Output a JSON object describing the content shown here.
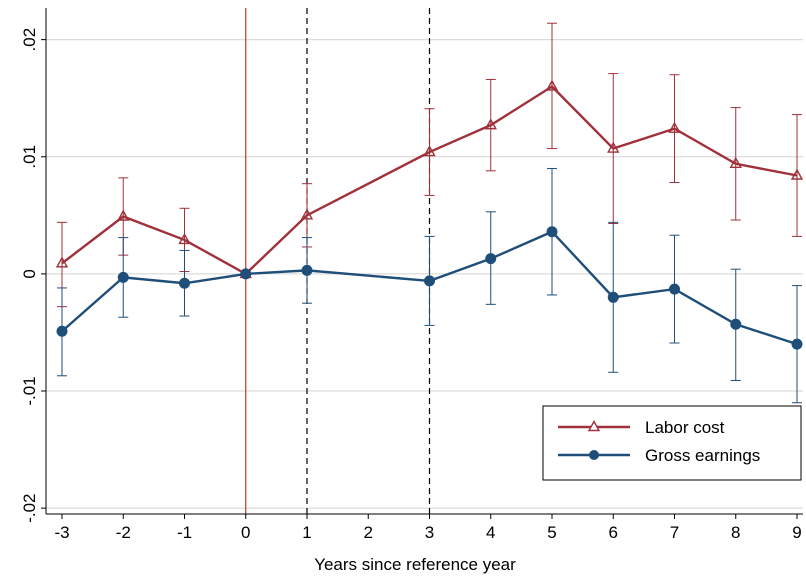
{
  "chart_data": {
    "type": "line",
    "xlabel": "Years since reference year",
    "ylabel": "",
    "x": [
      -3,
      -2,
      -1,
      0,
      1,
      3,
      4,
      5,
      6,
      7,
      8,
      9
    ],
    "xticks": [
      -3,
      -2,
      -1,
      0,
      1,
      2,
      3,
      4,
      5,
      6,
      7,
      8,
      9
    ],
    "yticks": [
      -0.02,
      -0.01,
      0,
      0.01,
      0.02
    ],
    "ytick_labels": [
      "-.02",
      "-.01",
      "0",
      ".01",
      ".02"
    ],
    "xlim": [
      -3,
      9
    ],
    "ylim": [
      -0.0205,
      0.0227
    ],
    "grid": true,
    "reference_lines": [
      {
        "x": 0,
        "style": "solid",
        "color": "#c0392b"
      },
      {
        "x": 1,
        "style": "dashed",
        "color": "#000000"
      },
      {
        "x": 3,
        "style": "dashed",
        "color": "#000000"
      }
    ],
    "legend_position": "bottom-right",
    "series": [
      {
        "name": "Labor cost",
        "marker": "triangle-open",
        "color": "#a0303a",
        "values": [
          0.0009,
          0.0049,
          0.0029,
          0.0,
          0.005,
          0.0104,
          0.0127,
          0.016,
          0.0107,
          0.0124,
          0.0094,
          0.0084
        ],
        "ci_low": [
          -0.0028,
          0.0016,
          0.0002,
          0.0,
          0.0023,
          0.0067,
          0.0088,
          0.0107,
          0.0043,
          0.0078,
          0.0046,
          0.0032
        ],
        "ci_high": [
          0.0044,
          0.0082,
          0.0056,
          0.0,
          0.0077,
          0.0141,
          0.0166,
          0.0214,
          0.0171,
          0.017,
          0.0142,
          0.0136
        ]
      },
      {
        "name": "Gross earnings",
        "marker": "circle-filled",
        "color": "#1f4e79",
        "values": [
          -0.0049,
          -0.0003,
          -0.0008,
          0.0,
          0.0003,
          -0.0006,
          0.0013,
          0.0036,
          -0.002,
          -0.0013,
          -0.0043,
          -0.006
        ],
        "ci_low": [
          -0.0087,
          -0.0037,
          -0.0036,
          0.0,
          -0.0025,
          -0.0044,
          -0.0026,
          -0.0018,
          -0.0084,
          -0.0059,
          -0.0091,
          -0.011
        ],
        "ci_high": [
          -0.0012,
          0.0031,
          0.002,
          0.0,
          0.0031,
          0.0032,
          0.0053,
          0.009,
          0.0044,
          0.0033,
          0.0004,
          -0.001
        ]
      }
    ]
  }
}
